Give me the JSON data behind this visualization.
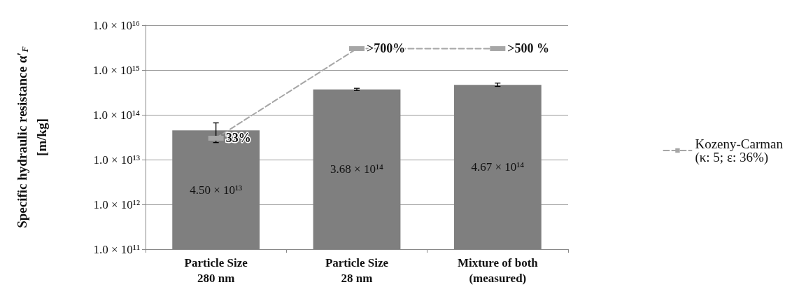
{
  "chart_data": {
    "type": "bar",
    "ylabel": "Specific hydraulic resistance α′$_{F}$\n[m/kg]",
    "categories": [
      "Particle Size\n280 nm",
      "Particle Size\n28 nm",
      "Mixture of both\n(measured)"
    ],
    "log": true,
    "ylim": [
      100000000000.0,
      1e+16
    ],
    "yticks": [
      {
        "value": 100000000000.0,
        "label": "1.0 × 10¹¹"
      },
      {
        "value": 1000000000000.0,
        "label": "1.0 × 10¹²"
      },
      {
        "value": 10000000000000.0,
        "label": "1.0 × 10¹³"
      },
      {
        "value": 100000000000000.0,
        "label": "1.0 × 10¹⁴"
      },
      {
        "value": 1000000000000000.0,
        "label": "1.0 × 10¹⁵"
      },
      {
        "value": 1e+16,
        "label": "1.0 × 10¹⁶"
      }
    ],
    "grid": "y",
    "legend": "right",
    "annotations": [
      {
        "text": "33%",
        "x": "Particle Size\n280 nm",
        "y": 30000000000000.0
      },
      {
        "text": ">700%",
        "x": "Particle Size\n28 nm",
        "y": 3000000000000000.0
      },
      {
        "text": ">500 %",
        "x": "Mixture of both\n(measured)",
        "y": 3000000000000000.0
      }
    ],
    "series": [
      {
        "color": "#7f7f7f",
        "values": [
          45000000000000.0,
          368000000000000.0,
          467000000000000.0
        ],
        "errors": [
          [
            24000000000000.0,
            66000000000000.0
          ],
          [
            350000000000000.0,
            390000000000000.0
          ],
          [
            430000000000000.0,
            510000000000000.0
          ]
        ],
        "value_labels": [
          "4.50 × 10¹³",
          "3.68 × 10¹⁴",
          "4.67 × 10¹⁴"
        ]
      },
      {
        "type": "line",
        "name": "Kozeny-Carman\n(κ: 5; ε: 36%)",
        "color": "#a6a6a6",
        "values": [
          30000000000000.0,
          3000000000000000.0,
          3000000000000000.0
        ],
        "marker": "square",
        "line_style": "dashed"
      }
    ]
  }
}
